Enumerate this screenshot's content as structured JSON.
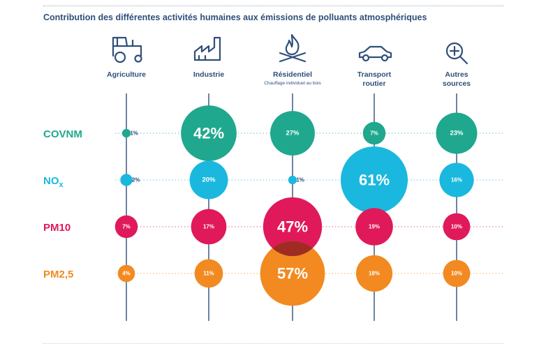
{
  "title": "Contribution des différentes activités humaines aux émissions de polluants atmosphériques",
  "icons": [
    "tractor-icon",
    "factory-icon",
    "wood-fire-icon",
    "car-icon",
    "magnifier-plus-icon"
  ],
  "colors": {
    "COVNM": "#1fa88e",
    "NOx": "#1ab8de",
    "PM10": "#e0195a",
    "PM25": "#f28a21",
    "axis": "#2f4f7a",
    "title": "#2f4f7a"
  },
  "chart_data": {
    "type": "bubble",
    "title": "Contribution des différentes activités humaines aux émissions de polluants atmosphériques",
    "columns": [
      {
        "label": "Agriculture",
        "sublabel": ""
      },
      {
        "label": "Industrie",
        "sublabel": ""
      },
      {
        "label": "Résidentiel",
        "sublabel": "Chauffage individuel au bois"
      },
      {
        "label": "Transport\nroutier",
        "sublabel": ""
      },
      {
        "label": "Autres\nsources",
        "sublabel": ""
      }
    ],
    "rows": [
      {
        "label": "COVNM",
        "sub": "",
        "color": "#1fa88e",
        "values": [
          1,
          42,
          27,
          7,
          23
        ]
      },
      {
        "label": "NO",
        "sub": "x",
        "color": "#1ab8de",
        "values": [
          2,
          20,
          1,
          61,
          16
        ]
      },
      {
        "label": "PM10",
        "sub": "",
        "color": "#e0195a",
        "values": [
          7,
          17,
          47,
          19,
          10
        ]
      },
      {
        "label": "PM2,5",
        "sub": "",
        "color": "#f28a21",
        "values": [
          4,
          11,
          57,
          18,
          10
        ]
      }
    ],
    "unit": "%"
  }
}
